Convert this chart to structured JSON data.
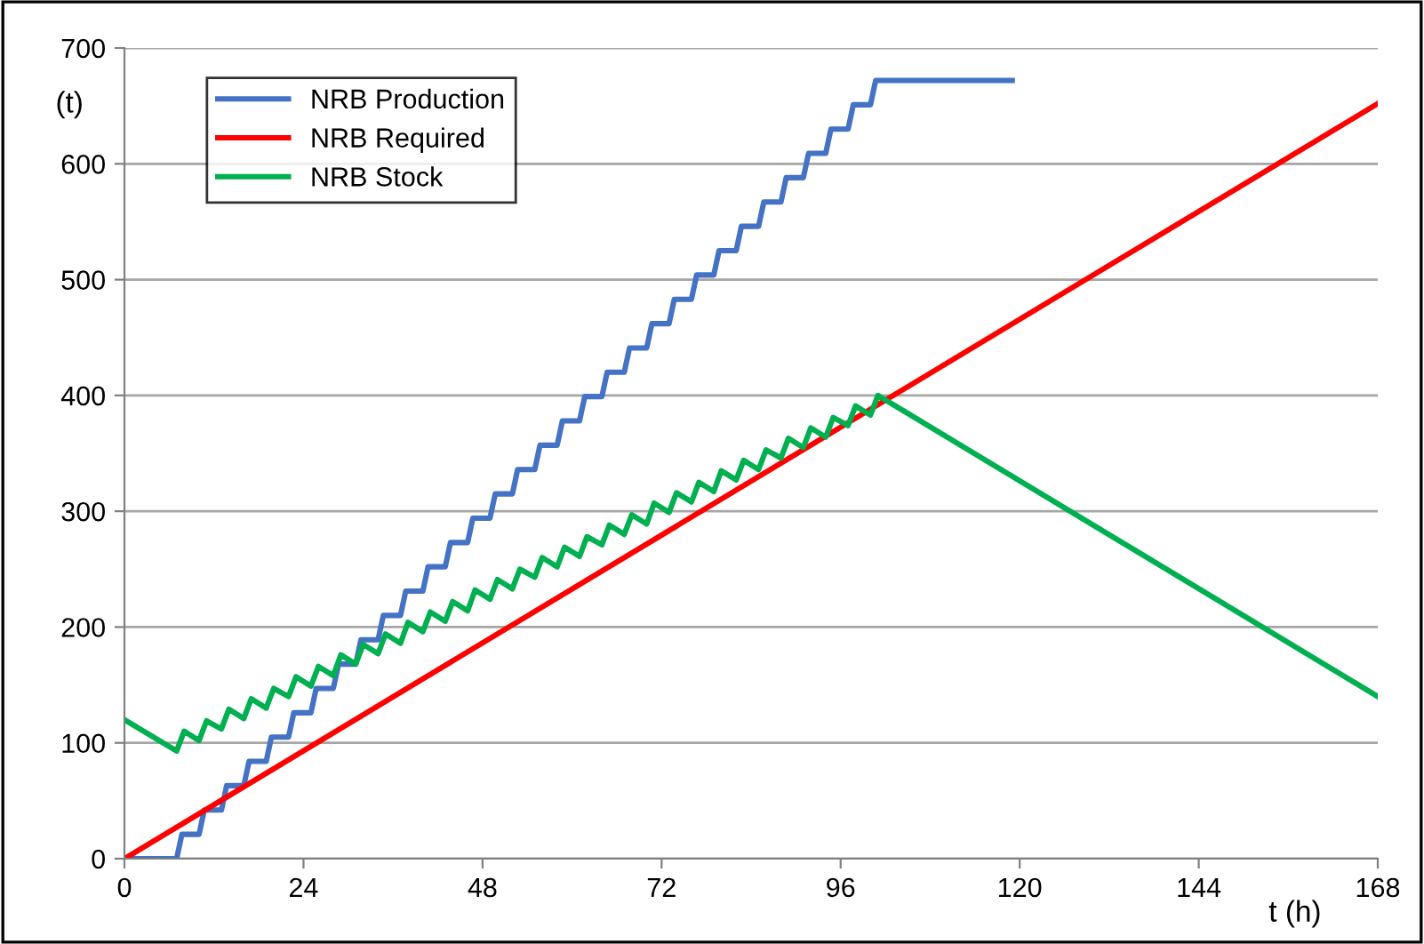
{
  "chart_data": {
    "type": "line",
    "xlabel": "t (h)",
    "ylabel": "(t)",
    "xlim": [
      0,
      168
    ],
    "xticks": [
      0,
      24,
      48,
      72,
      96,
      120,
      144,
      168
    ],
    "ylim": [
      0,
      700
    ],
    "yticks": [
      0,
      100,
      200,
      300,
      400,
      500,
      600,
      700
    ],
    "grid": "y",
    "legend": "top left",
    "marker": "none",
    "line_style": "solid",
    "series": [
      {
        "name": "NRB Production",
        "color": "#4472c4",
        "x": [
          0,
          7,
          7.7,
          10,
          10.7,
          13,
          13.7,
          16,
          16.7,
          19,
          19.7,
          22,
          22.7,
          25,
          25.7,
          28,
          28.7,
          31,
          31.7,
          34,
          34.7,
          37,
          37.7,
          40,
          40.7,
          43,
          43.7,
          46,
          46.7,
          49,
          49.7,
          52,
          52.7,
          55,
          55.7,
          58,
          58.7,
          61,
          61.7,
          64,
          64.7,
          67,
          67.7,
          70,
          70.7,
          73,
          73.7,
          76,
          76.7,
          79,
          79.7,
          82,
          82.7,
          85,
          85.7,
          88,
          88.7,
          91,
          91.7,
          94,
          94.7,
          97,
          97.7,
          100,
          100.7,
          119
        ],
        "values": [
          0,
          0,
          21,
          21,
          42,
          42,
          63,
          63,
          84,
          84,
          105,
          105,
          126,
          126,
          147,
          147,
          168,
          168,
          189,
          189,
          210,
          210,
          231,
          231,
          252,
          252,
          273,
          273,
          294,
          294,
          315,
          315,
          336,
          336,
          357,
          357,
          378,
          378,
          399,
          399,
          420,
          420,
          441,
          441,
          462,
          462,
          483,
          483,
          504,
          504,
          525,
          525,
          546,
          546,
          567,
          567,
          588,
          588,
          609,
          609,
          630,
          630,
          651,
          651,
          672,
          672
        ]
      },
      {
        "name": "NRB Required",
        "color": "#ff0000",
        "x": [
          0,
          168
        ],
        "values": [
          0,
          652
        ]
      },
      {
        "name": "NRB Stock",
        "color": "#00b050",
        "x": [
          0,
          7,
          8,
          10,
          11,
          13,
          14,
          16,
          17,
          19,
          20,
          22,
          23,
          25,
          26,
          28,
          29,
          31,
          32,
          34,
          35,
          37,
          38,
          40,
          41,
          43,
          44,
          46,
          47,
          49,
          50,
          52,
          53,
          55,
          56,
          58,
          59,
          61,
          62,
          64,
          65,
          67,
          68,
          70,
          71,
          73,
          74,
          76,
          77,
          79,
          80,
          82,
          83,
          85,
          86,
          88,
          89,
          91,
          92,
          94,
          95,
          97,
          98,
          100,
          101,
          168
        ],
        "values": [
          120,
          93,
          110,
          102,
          119,
          112,
          129,
          121,
          138,
          130,
          147,
          140,
          157,
          149,
          166,
          158,
          176,
          168,
          185,
          177,
          194,
          186,
          204,
          196,
          213,
          205,
          222,
          214,
          232,
          224,
          241,
          233,
          250,
          243,
          260,
          252,
          269,
          261,
          278,
          271,
          288,
          280,
          297,
          289,
          307,
          299,
          316,
          308,
          325,
          317,
          335,
          327,
          344,
          336,
          353,
          346,
          363,
          355,
          372,
          364,
          381,
          374,
          391,
          383,
          400,
          140
        ]
      }
    ]
  }
}
